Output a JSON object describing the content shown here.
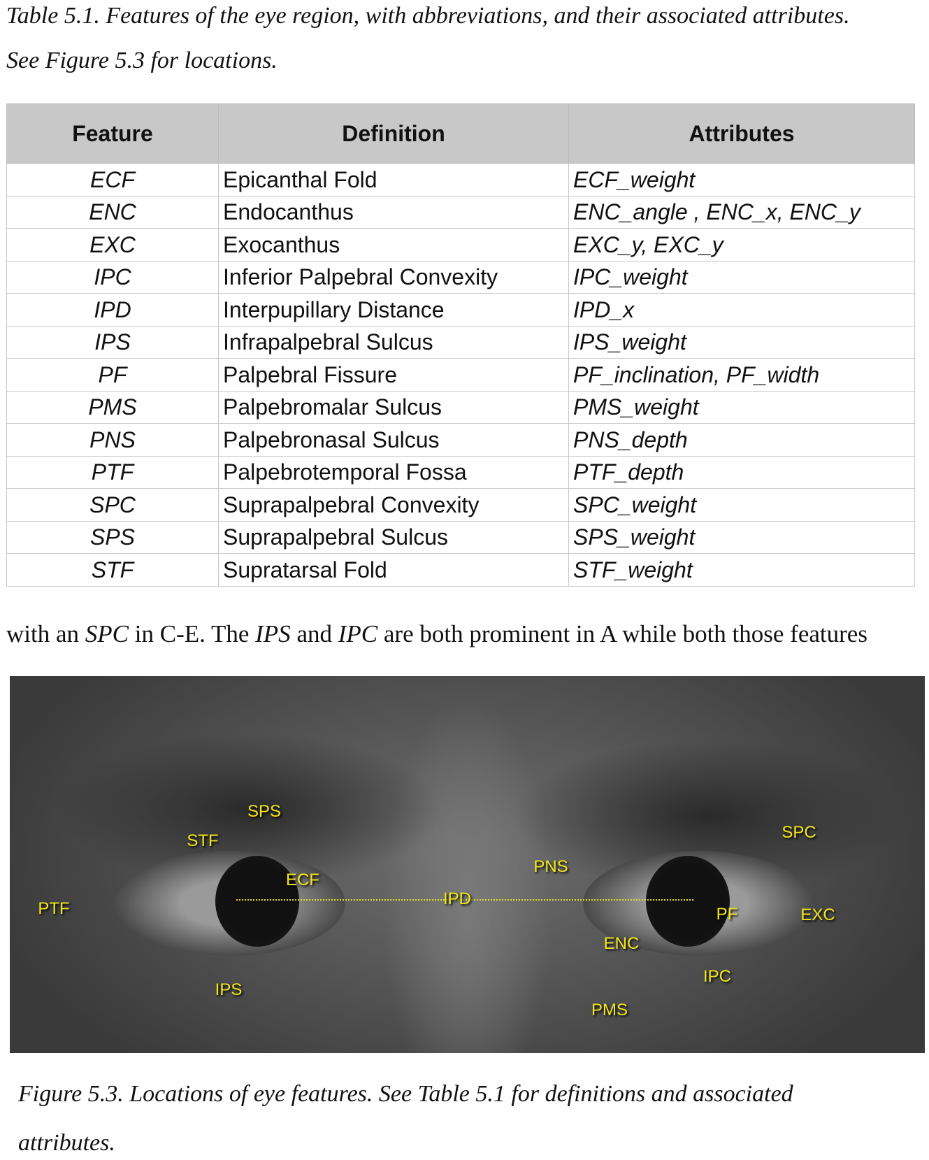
{
  "table_caption": {
    "line1": "Table 5.1.  Features of the eye region, with abbreviations, and their associated attributes.",
    "line2": "See Figure 5.3 for locations."
  },
  "table": {
    "headers": [
      "Feature",
      "Definition",
      "Attributes"
    ],
    "rows": [
      [
        "ECF",
        "Epicanthal Fold",
        "ECF_weight"
      ],
      [
        "ENC",
        "Endocanthus",
        "ENC_angle , ENC_x, ENC_y"
      ],
      [
        "EXC",
        "Exocanthus",
        "EXC_y, EXC_y"
      ],
      [
        "IPC",
        "Inferior Palpebral Convexity",
        "IPC_weight"
      ],
      [
        "IPD",
        "Interpupillary Distance",
        "IPD_x"
      ],
      [
        "IPS",
        "Infrapalpebral Sulcus",
        "IPS_weight"
      ],
      [
        "PF",
        "Palpebral Fissure",
        "PF_inclination, PF_width"
      ],
      [
        "PMS",
        "Palpebromalar Sulcus",
        "PMS_weight"
      ],
      [
        "PNS",
        "Palpebronasal Sulcus",
        "PNS_depth"
      ],
      [
        "PTF",
        "Palpebrotemporal Fossa",
        "PTF_depth"
      ],
      [
        "SPC",
        "Suprapalpebral Convexity",
        "SPC_weight"
      ],
      [
        "SPS",
        "Suprapalpebral Sulcus",
        "SPS_weight"
      ],
      [
        "STF",
        "Supratarsal Fold",
        "STF_weight"
      ]
    ]
  },
  "body_text": {
    "p1": "with an ",
    "i1": "SPC",
    "p2": " in C-E.  The ",
    "i2": "IPS",
    "p3": " and ",
    "i3": "IPC",
    "p4": " are both prominent in A while both those features"
  },
  "figure": {
    "labels": [
      "SPS",
      "STF",
      "ECF",
      "PTF",
      "IPD",
      "PNS",
      "SPC",
      "PF",
      "EXC",
      "ENC",
      "IPC",
      "IPS",
      "PMS"
    ],
    "label_color": "#f2e71a",
    "caption_line1": "Figure 5.3.  Locations of eye features.  See Table 5.1 for definitions and associated",
    "caption_line2": "attributes."
  }
}
